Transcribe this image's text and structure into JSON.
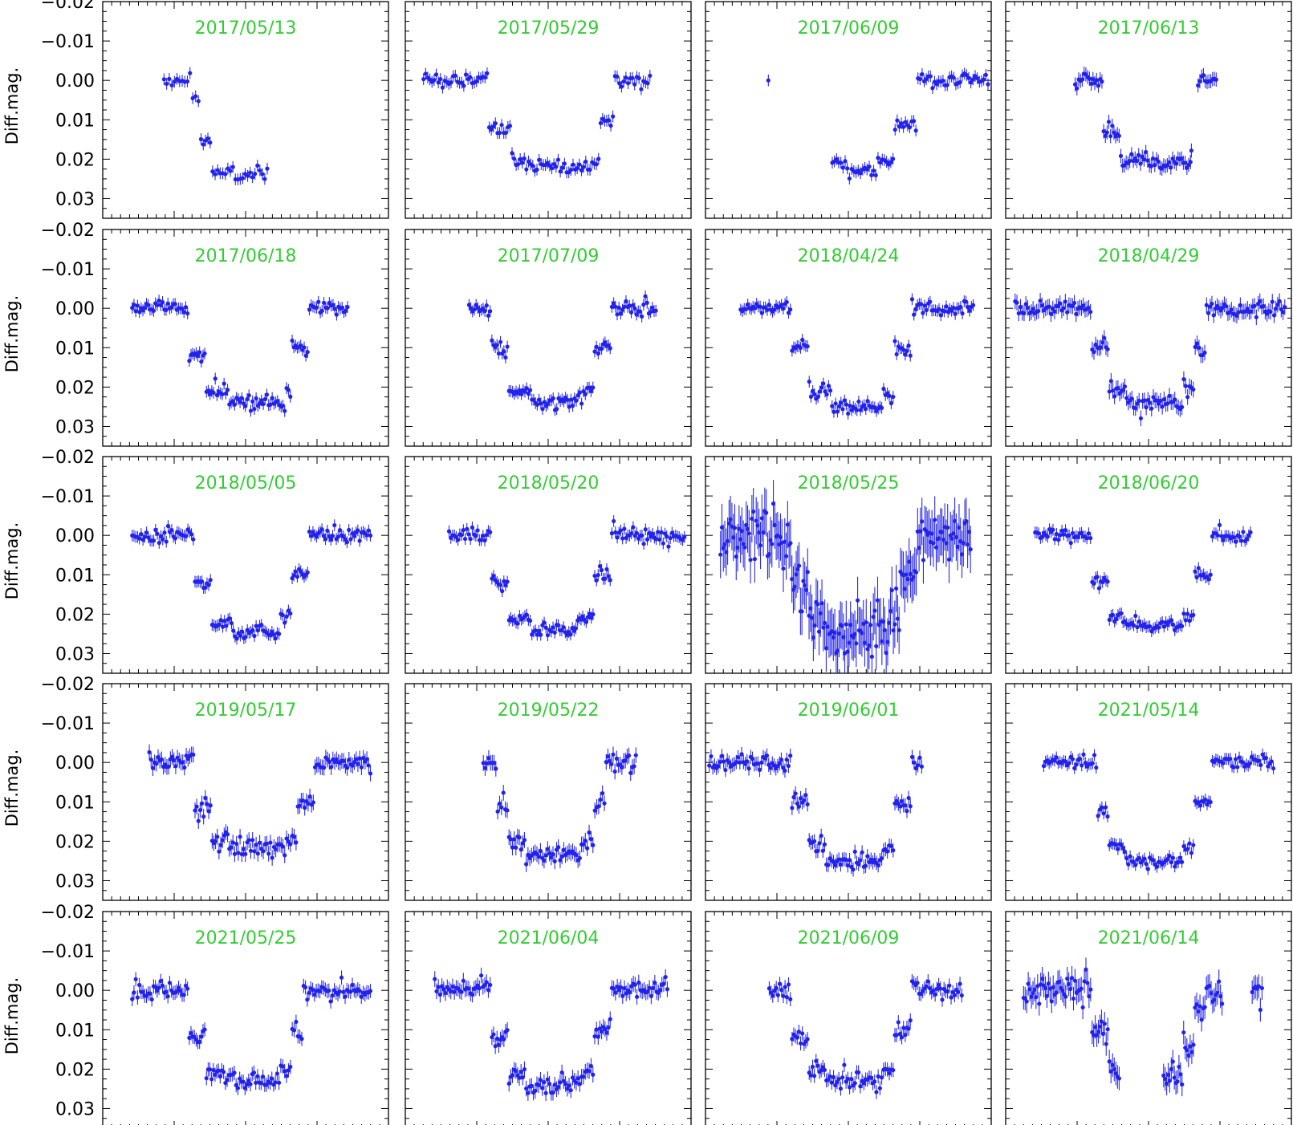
{
  "chart_data": {
    "type": "scatter",
    "layout": "grid 5 rows x 4 columns of light-curve panels",
    "ylabel": "Diff.mag.",
    "y_inverted": true,
    "ylim": [
      -0.02,
      0.035
    ],
    "yticks": [
      -0.02,
      -0.01,
      0.0,
      0.01,
      0.02,
      0.03
    ],
    "ytick_labels": [
      "−0.02",
      "−0.01",
      "0.00",
      "0.01",
      "0.02",
      "0.03"
    ],
    "x_tick_labels_shown": false,
    "colors": {
      "points": "#2222ee",
      "titles": "#33cc33",
      "axes": "#000000"
    },
    "panels": [
      {
        "title": "2017/05/13",
        "dense": 0.035,
        "segments": [
          [
            0.21,
            0.31,
            0.0
          ],
          [
            0.31,
            0.34,
            0.005
          ],
          [
            0.34,
            0.38,
            0.016
          ],
          [
            0.38,
            0.46,
            0.023
          ],
          [
            0.46,
            0.58,
            0.024
          ]
        ],
        "err": 0.0015
      },
      {
        "title": "2017/05/29",
        "dense": 0.03,
        "segments": [
          [
            0.06,
            0.29,
            0.0
          ],
          [
            0.29,
            0.37,
            0.012
          ],
          [
            0.37,
            0.42,
            0.02
          ],
          [
            0.42,
            0.65,
            0.022
          ],
          [
            0.65,
            0.68,
            0.02
          ],
          [
            0.68,
            0.73,
            0.01
          ],
          [
            0.73,
            0.86,
            0.0
          ]
        ],
        "err": 0.0015
      },
      {
        "title": "2017/06/09",
        "dense": 0.03,
        "segments": [
          [
            0.44,
            0.5,
            0.021
          ],
          [
            0.5,
            0.6,
            0.023
          ],
          [
            0.6,
            0.66,
            0.02
          ],
          [
            0.66,
            0.74,
            0.011
          ],
          [
            0.74,
            0.82,
            0.0
          ],
          [
            0.82,
            1.0,
            0.0
          ]
        ],
        "extra": [
          [
            0.22,
            0.0
          ]
        ],
        "err": 0.0015
      },
      {
        "title": "2017/06/13",
        "dense": 0.025,
        "segments": [
          [
            0.24,
            0.34,
            0.0
          ],
          [
            0.34,
            0.4,
            0.013
          ],
          [
            0.4,
            0.5,
            0.02
          ],
          [
            0.5,
            0.65,
            0.021
          ],
          [
            0.65,
            0.65,
            0.019
          ],
          [
            0.67,
            0.74,
            0.0
          ]
        ],
        "gaps": [
          [
            0.64,
            0.66
          ]
        ],
        "err": 0.0018
      },
      {
        "title": "2017/06/18",
        "dense": 0.025,
        "segments": [
          [
            0.1,
            0.3,
            0.0
          ],
          [
            0.3,
            0.36,
            0.012
          ],
          [
            0.36,
            0.44,
            0.021
          ],
          [
            0.44,
            0.64,
            0.024
          ],
          [
            0.64,
            0.66,
            0.02
          ],
          [
            0.66,
            0.72,
            0.01
          ],
          [
            0.72,
            0.86,
            0.0
          ]
        ],
        "err": 0.0015
      },
      {
        "title": "2017/07/09",
        "dense": 0.025,
        "segments": [
          [
            0.22,
            0.3,
            0.0
          ],
          [
            0.3,
            0.36,
            0.01
          ],
          [
            0.36,
            0.44,
            0.021
          ],
          [
            0.44,
            0.62,
            0.024
          ],
          [
            0.62,
            0.66,
            0.021
          ],
          [
            0.66,
            0.72,
            0.01
          ],
          [
            0.72,
            0.88,
            0.0
          ]
        ],
        "err": 0.0015
      },
      {
        "title": "2018/04/24",
        "dense": 0.025,
        "segments": [
          [
            0.12,
            0.3,
            0.0
          ],
          [
            0.3,
            0.36,
            0.01
          ],
          [
            0.36,
            0.44,
            0.021
          ],
          [
            0.44,
            0.62,
            0.025
          ],
          [
            0.62,
            0.66,
            0.022
          ],
          [
            0.66,
            0.72,
            0.01
          ],
          [
            0.72,
            0.94,
            0.0
          ]
        ],
        "err": 0.0015
      },
      {
        "title": "2018/04/29",
        "dense": 0.025,
        "segments": [
          [
            0.03,
            0.3,
            0.0
          ],
          [
            0.3,
            0.36,
            0.01
          ],
          [
            0.36,
            0.42,
            0.021
          ],
          [
            0.42,
            0.62,
            0.024
          ],
          [
            0.62,
            0.66,
            0.02
          ],
          [
            0.66,
            0.7,
            0.01
          ],
          [
            0.7,
            0.98,
            0.0
          ]
        ],
        "err": 0.002
      },
      {
        "title": "2018/05/05",
        "dense": 0.025,
        "segments": [
          [
            0.1,
            0.32,
            0.0
          ],
          [
            0.32,
            0.38,
            0.012
          ],
          [
            0.38,
            0.46,
            0.022
          ],
          [
            0.46,
            0.62,
            0.025
          ],
          [
            0.62,
            0.66,
            0.02
          ],
          [
            0.66,
            0.72,
            0.01
          ],
          [
            0.72,
            0.94,
            0.0
          ]
        ],
        "err": 0.0015
      },
      {
        "title": "2018/05/20",
        "dense": 0.025,
        "segments": [
          [
            0.15,
            0.3,
            0.0
          ],
          [
            0.3,
            0.36,
            0.012
          ],
          [
            0.36,
            0.44,
            0.022
          ],
          [
            0.44,
            0.6,
            0.024
          ],
          [
            0.6,
            0.66,
            0.021
          ],
          [
            0.66,
            0.72,
            0.01
          ],
          [
            0.72,
            0.98,
            0.0
          ]
        ],
        "err": 0.0015
      },
      {
        "title": "2018/05/25",
        "dense": 0.02,
        "segments": [
          [
            0.05,
            0.3,
            0.0
          ],
          [
            0.3,
            0.36,
            0.012
          ],
          [
            0.36,
            0.42,
            0.021
          ],
          [
            0.42,
            0.64,
            0.024
          ],
          [
            0.64,
            0.68,
            0.02
          ],
          [
            0.68,
            0.74,
            0.01
          ],
          [
            0.74,
            0.93,
            0.0
          ]
        ],
        "err": 0.006
      },
      {
        "title": "2018/06/20",
        "dense": 0.025,
        "segments": [
          [
            0.1,
            0.3,
            0.0
          ],
          [
            0.3,
            0.36,
            0.012
          ],
          [
            0.36,
            0.42,
            0.021
          ],
          [
            0.42,
            0.62,
            0.023
          ],
          [
            0.62,
            0.66,
            0.02
          ],
          [
            0.66,
            0.72,
            0.01
          ],
          [
            0.72,
            0.86,
            0.0
          ]
        ],
        "err": 0.0015
      },
      {
        "title": "2019/05/17",
        "dense": 0.025,
        "segments": [
          [
            0.16,
            0.32,
            0.0
          ],
          [
            0.32,
            0.38,
            0.012
          ],
          [
            0.38,
            0.44,
            0.02
          ],
          [
            0.44,
            0.64,
            0.022
          ],
          [
            0.64,
            0.68,
            0.019
          ],
          [
            0.68,
            0.74,
            0.01
          ],
          [
            0.74,
            0.94,
            0.0
          ]
        ],
        "err": 0.002
      },
      {
        "title": "2019/05/22",
        "dense": 0.025,
        "segments": [
          [
            0.27,
            0.32,
            0.0
          ],
          [
            0.32,
            0.36,
            0.01
          ],
          [
            0.36,
            0.42,
            0.02
          ],
          [
            0.42,
            0.62,
            0.023
          ],
          [
            0.62,
            0.66,
            0.02
          ],
          [
            0.66,
            0.7,
            0.01
          ],
          [
            0.7,
            0.81,
            0.0
          ]
        ],
        "err": 0.002
      },
      {
        "title": "2019/06/01",
        "dense": 0.025,
        "segments": [
          [
            0.01,
            0.3,
            0.0
          ],
          [
            0.3,
            0.36,
            0.01
          ],
          [
            0.36,
            0.42,
            0.021
          ],
          [
            0.42,
            0.62,
            0.025
          ],
          [
            0.62,
            0.66,
            0.022
          ],
          [
            0.66,
            0.72,
            0.01
          ],
          [
            0.72,
            0.76,
            0.0
          ]
        ],
        "err": 0.0018
      },
      {
        "title": "2021/05/14",
        "dense": 0.025,
        "segments": [
          [
            0.13,
            0.32,
            0.0
          ],
          [
            0.32,
            0.36,
            0.012
          ],
          [
            0.36,
            0.42,
            0.021
          ],
          [
            0.42,
            0.62,
            0.025
          ],
          [
            0.62,
            0.66,
            0.022
          ],
          [
            0.66,
            0.72,
            0.01
          ],
          [
            0.72,
            0.94,
            0.0
          ]
        ],
        "err": 0.0015
      },
      {
        "title": "2021/05/25",
        "dense": 0.025,
        "segments": [
          [
            0.1,
            0.3,
            0.0
          ],
          [
            0.3,
            0.36,
            0.012
          ],
          [
            0.36,
            0.42,
            0.021
          ],
          [
            0.42,
            0.62,
            0.023
          ],
          [
            0.62,
            0.66,
            0.02
          ],
          [
            0.66,
            0.7,
            0.01
          ],
          [
            0.7,
            0.94,
            0.0
          ]
        ],
        "err": 0.0018
      },
      {
        "title": "2021/06/04",
        "dense": 0.025,
        "segments": [
          [
            0.1,
            0.3,
            0.0
          ],
          [
            0.3,
            0.36,
            0.012
          ],
          [
            0.36,
            0.42,
            0.021
          ],
          [
            0.42,
            0.62,
            0.024
          ],
          [
            0.62,
            0.66,
            0.02
          ],
          [
            0.66,
            0.72,
            0.01
          ],
          [
            0.72,
            0.92,
            0.0
          ]
        ],
        "err": 0.002
      },
      {
        "title": "2021/06/09",
        "dense": 0.025,
        "segments": [
          [
            0.22,
            0.3,
            0.0
          ],
          [
            0.3,
            0.36,
            0.012
          ],
          [
            0.36,
            0.42,
            0.021
          ],
          [
            0.42,
            0.62,
            0.023
          ],
          [
            0.62,
            0.66,
            0.02
          ],
          [
            0.66,
            0.72,
            0.01
          ],
          [
            0.72,
            0.9,
            0.0
          ]
        ],
        "err": 0.0018
      },
      {
        "title": "2021/06/14",
        "dense": 0.022,
        "segments": [
          [
            0.06,
            0.3,
            0.0
          ],
          [
            0.3,
            0.36,
            0.01
          ],
          [
            0.36,
            0.4,
            0.02
          ],
          [
            0.55,
            0.62,
            0.022
          ],
          [
            0.62,
            0.66,
            0.015
          ],
          [
            0.66,
            0.7,
            0.005
          ],
          [
            0.7,
            0.76,
            0.0
          ],
          [
            0.86,
            0.9,
            0.0
          ]
        ],
        "err": 0.003
      }
    ]
  }
}
